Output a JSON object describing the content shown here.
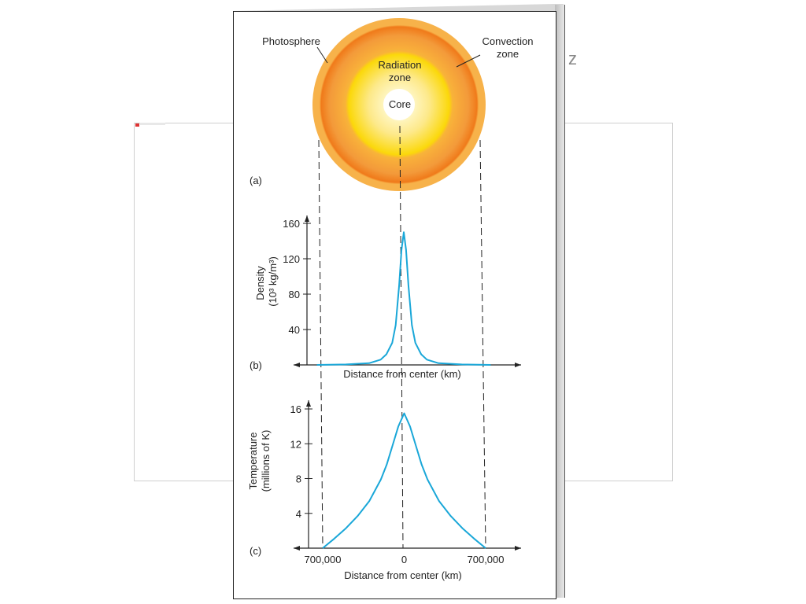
{
  "sun": {
    "photosphere": "Photosphere",
    "convection_line1": "Convection",
    "convection_line2": "zone",
    "radiation_line1": "Radiation",
    "radiation_line2": "zone",
    "core": "Core"
  },
  "panels": {
    "a": "(a)",
    "b": "(b)",
    "c": "(c)"
  },
  "colors": {
    "curve": "#1aa7d8",
    "photosphere": "#f7b24a",
    "convection": "#f07a1a",
    "radiation": "#fbd80a",
    "core": "#ffffff"
  },
  "chart_data": [
    {
      "type": "line",
      "panel": "(b)",
      "ylabel_line1": "Density",
      "ylabel_line2": "(10³ kg/m³)",
      "xlabel": "Distance from center (km)",
      "yticks": [
        40,
        80,
        120,
        160
      ],
      "ylim": [
        0,
        160
      ],
      "xlim": [
        -700000,
        700000
      ],
      "series": [
        {
          "x": [
            -750000,
            -650000,
            -500000,
            -300000,
            -200000,
            -150000,
            -100000,
            -70000,
            -40000,
            -20000,
            0,
            20000,
            40000,
            70000,
            100000,
            150000,
            200000,
            300000,
            500000,
            650000,
            750000
          ],
          "values": [
            0,
            0.2,
            0.5,
            2,
            6,
            12,
            25,
            45,
            90,
            130,
            150,
            130,
            90,
            45,
            25,
            12,
            6,
            2,
            0.5,
            0.2,
            0
          ]
        }
      ]
    },
    {
      "type": "line",
      "panel": "(c)",
      "ylabel_line1": "Temperature",
      "ylabel_line2": "(millions of K)",
      "xlabel": "Distance from center (km)",
      "xticks": [
        "700,000",
        "0",
        "700,000"
      ],
      "yticks": [
        4,
        8,
        12,
        16
      ],
      "ylim": [
        0,
        16
      ],
      "xlim": [
        -700000,
        700000
      ],
      "series": [
        {
          "x": [
            -700000,
            -600000,
            -500000,
            -400000,
            -300000,
            -200000,
            -150000,
            -100000,
            -50000,
            0,
            50000,
            100000,
            150000,
            200000,
            300000,
            400000,
            500000,
            600000,
            700000
          ],
          "values": [
            0,
            1.1,
            2.3,
            3.7,
            5.4,
            7.9,
            9.6,
            11.8,
            14,
            15.5,
            14,
            11.8,
            9.6,
            7.9,
            5.4,
            3.7,
            2.3,
            1.1,
            0
          ]
        }
      ]
    }
  ]
}
